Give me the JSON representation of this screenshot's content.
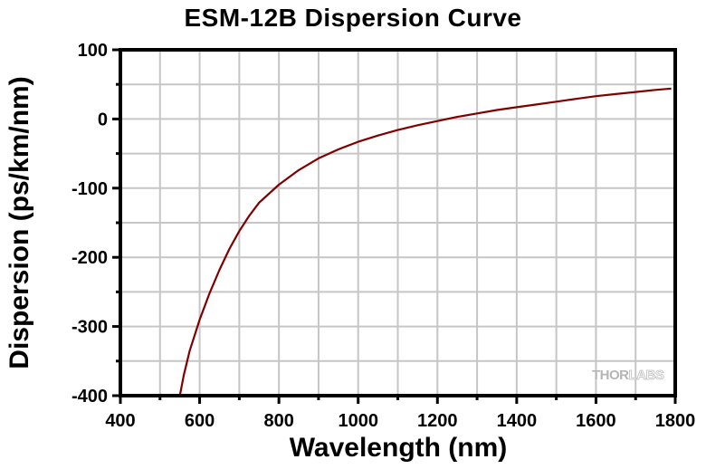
{
  "chart_data": {
    "type": "line",
    "title": "ESM-12B Dispersion Curve",
    "xlabel": "Wavelength (nm)",
    "ylabel": "Dispersion (ps/km/nm)",
    "xlim": [
      400,
      1800
    ],
    "ylim": [
      -400,
      100
    ],
    "xticks": [
      400,
      600,
      800,
      1000,
      1200,
      1400,
      1600,
      1800
    ],
    "xtick_labels": [
      "400",
      "600",
      "800",
      "1000",
      "1200",
      "1400",
      "1600",
      "1800"
    ],
    "xminor_ticks": [
      500,
      700,
      900,
      1100,
      1300,
      1500,
      1700
    ],
    "yticks": [
      -400,
      -300,
      -200,
      -100,
      0,
      100
    ],
    "ytick_labels": [
      "-400",
      "-300",
      "-200",
      "-100",
      "0",
      "100"
    ],
    "yminor_ticks": [
      -350,
      -250,
      -150,
      -50,
      50
    ],
    "grid": true,
    "legend": "none",
    "series": [
      {
        "name": "ESM-12B",
        "color": "#800000",
        "x": [
          550,
          560,
          575,
          600,
          625,
          650,
          675,
          700,
          725,
          750,
          800,
          850,
          900,
          950,
          1000,
          1050,
          1100,
          1150,
          1200,
          1250,
          1300,
          1350,
          1400,
          1450,
          1500,
          1550,
          1600,
          1650,
          1700,
          1750,
          1790
        ],
        "y": [
          -400,
          -370,
          -335,
          -290,
          -252,
          -218,
          -188,
          -162,
          -140,
          -121,
          -95,
          -74,
          -57,
          -44,
          -33,
          -24,
          -16,
          -9,
          -3,
          3,
          8,
          13,
          17,
          21,
          25,
          29,
          33,
          36,
          39,
          42,
          44
        ]
      }
    ]
  },
  "watermark": {
    "part1": "THOR",
    "part2": "LABS"
  }
}
